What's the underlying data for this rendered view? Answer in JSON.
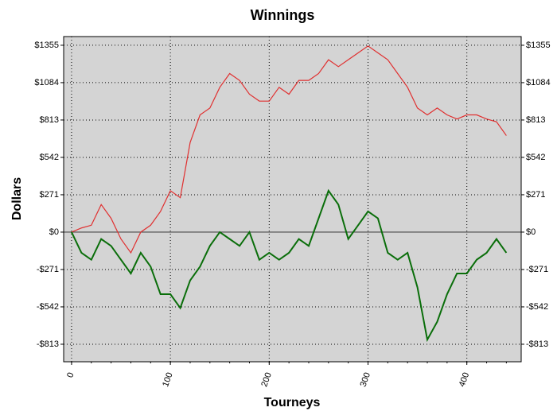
{
  "chart_data": {
    "type": "line",
    "title": "Winnings",
    "x_label": "Tourneys",
    "y_label": "Dollars",
    "x": [
      0,
      10,
      20,
      30,
      40,
      50,
      60,
      70,
      80,
      90,
      100,
      110,
      120,
      130,
      140,
      150,
      160,
      170,
      180,
      190,
      200,
      210,
      220,
      230,
      240,
      250,
      260,
      270,
      280,
      290,
      300,
      310,
      320,
      330,
      340,
      350,
      360,
      370,
      380,
      390,
      400,
      410,
      420,
      430,
      440
    ],
    "series": [
      {
        "color": "#e03030",
        "values": [
          0,
          30,
          50,
          200,
          100,
          -50,
          -150,
          0,
          50,
          150,
          300,
          250,
          650,
          850,
          900,
          1050,
          1150,
          1100,
          1000,
          950,
          950,
          1050,
          1000,
          1100,
          1100,
          1150,
          1250,
          1200,
          1250,
          1300,
          1350,
          1300,
          1250,
          1150,
          1050,
          900,
          850,
          900,
          850,
          820,
          850,
          850,
          820,
          800,
          700
        ]
      },
      {
        "color": "#0a6e0a",
        "values": [
          0,
          -150,
          -200,
          -50,
          -100,
          -200,
          -300,
          -150,
          -250,
          -450,
          -450,
          -550,
          -350,
          -250,
          -100,
          0,
          -50,
          -100,
          0,
          -200,
          -150,
          -200,
          -150,
          -50,
          -100,
          100,
          300,
          200,
          -50,
          50,
          150,
          100,
          -150,
          -200,
          -150,
          -400,
          -780,
          -650,
          -450,
          -300,
          -300,
          -200,
          -150,
          -50,
          -150
        ]
      }
    ],
    "xlim": [
      -8,
      455
    ],
    "ylim": [
      -940,
      1418
    ],
    "xticks": [
      0,
      100,
      200,
      300,
      400
    ],
    "yticks": [
      {
        "value": -813,
        "label": "-$813"
      },
      {
        "value": -542,
        "label": "-$542"
      },
      {
        "value": -271,
        "label": "-$271"
      },
      {
        "value": 0,
        "label": "$0"
      },
      {
        "value": 271,
        "label": "$271"
      },
      {
        "value": 542,
        "label": "$542"
      },
      {
        "value": 813,
        "label": "$813"
      },
      {
        "value": 1084,
        "label": "$1084"
      },
      {
        "value": 1355,
        "label": "$1355"
      }
    ],
    "grid": true
  }
}
